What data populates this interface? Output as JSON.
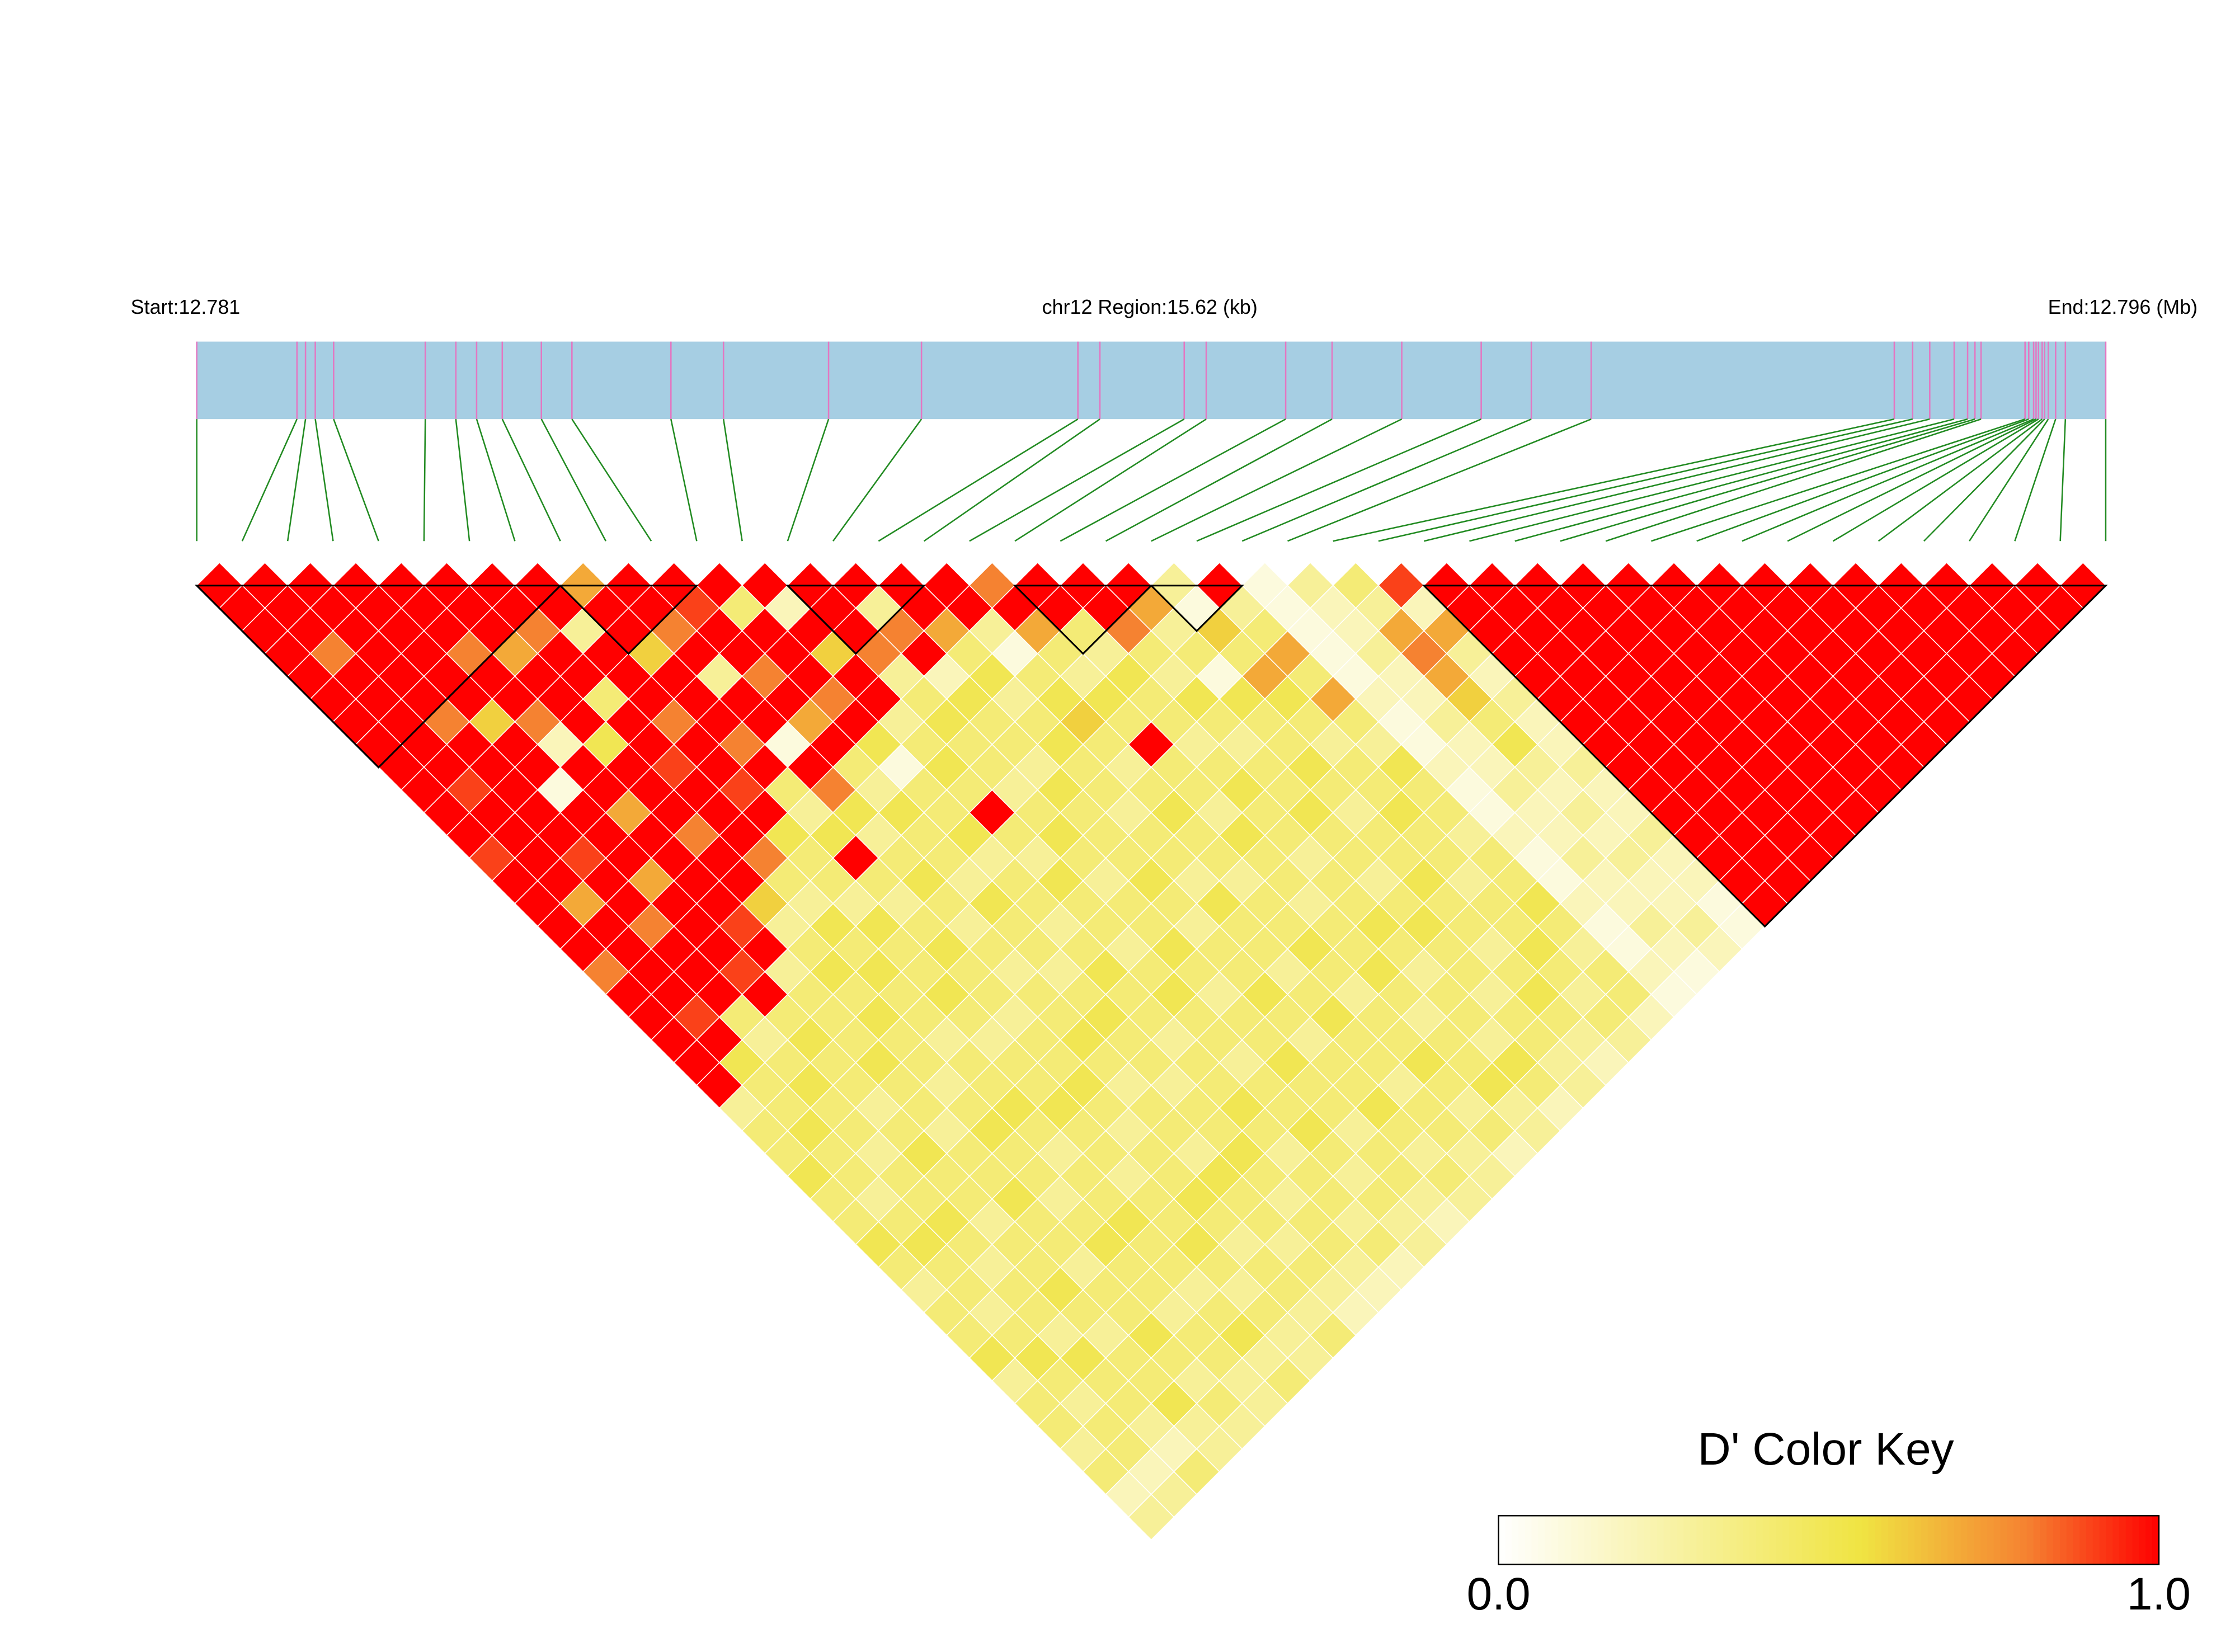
{
  "chart_data": {
    "type": "ld-heatmap",
    "start_label": "Start:12.781",
    "title": "chr12 Region:15.62 (kb)",
    "end_label": "End:12.796 (Mb)",
    "xlim": [
      0,
      15.62
    ],
    "positions": [
      0,
      0.82,
      0.89,
      0.97,
      1.12,
      1.87,
      2.12,
      2.29,
      2.5,
      2.82,
      3.07,
      3.88,
      4.31,
      5.17,
      5.93,
      7.21,
      7.39,
      8.08,
      8.26,
      8.91,
      9.29,
      9.86,
      10.51,
      10.92,
      11.41,
      13.89,
      14.04,
      14.18,
      14.38,
      14.49,
      14.55,
      14.6,
      14.96,
      14.99,
      15.03,
      15.05,
      15.07,
      15.1,
      15.12,
      15.15,
      15.21,
      15.29,
      15.62
    ],
    "matrix": [
      [
        1,
        1,
        1,
        1,
        1,
        1,
        1,
        1,
        1,
        1,
        1,
        1,
        0.9,
        1,
        1,
        1,
        1,
        0.8,
        1,
        1,
        1,
        1,
        1,
        0.3,
        0.4,
        0.4,
        0.5,
        0.4,
        0.4,
        0.5,
        0.4,
        0.3,
        0.4,
        0.4,
        0.5,
        0.3,
        0.4,
        0.4,
        0.3,
        0.4,
        0.2,
        0.3
      ],
      [
        1,
        1,
        1,
        0.8,
        1,
        1,
        1,
        1,
        1,
        0.9,
        1,
        1,
        1,
        1,
        0.7,
        1,
        1,
        1,
        1,
        0.9,
        1,
        0.5,
        0.4,
        0.4,
        0.5,
        0.4,
        0.4,
        0.3,
        0.4,
        0.5,
        0.4,
        0.4,
        0.3,
        0.4,
        0.5,
        0.4,
        0.3,
        0.4,
        0.4,
        0.2,
        0.3
      ],
      [
        1,
        1,
        1,
        1,
        1,
        1,
        0.8,
        1,
        1,
        1,
        1,
        1,
        0.9,
        1,
        1,
        0.8,
        1,
        1,
        1,
        0.4,
        0.3,
        0.4,
        0.5,
        0.4,
        0.4,
        0.3,
        0.4,
        0.4,
        0.5,
        0.4,
        0.3,
        0.4,
        0.4,
        0.3,
        0.5,
        0.4,
        0.4,
        0.3,
        0.2,
        0.4
      ],
      [
        1,
        1,
        1,
        1,
        1,
        1,
        0.6,
        1,
        1,
        0.1,
        1,
        1,
        1,
        0.7,
        1,
        1,
        1,
        0.9,
        1,
        0.4,
        0.5,
        0.4,
        0.4,
        0.3,
        0.4,
        0.5,
        0.4,
        0.4,
        0.3,
        0.4,
        0.4,
        0.5,
        0.4,
        0.3,
        0.4,
        0.4,
        0.5,
        0.3,
        0.3
      ],
      [
        1,
        1,
        1,
        0.8,
        1,
        1,
        0.8,
        0.2,
        1,
        1,
        0.7,
        1,
        1,
        1,
        1,
        0.9,
        1,
        0.3,
        0.4,
        0.4,
        0.4,
        0.5,
        0.4,
        0.4,
        0.3,
        0.4,
        0.4,
        0.5,
        0.4,
        0.4,
        0.3,
        0.4,
        0.4,
        0.5,
        0.4,
        0.3,
        0.4,
        0.3
      ],
      [
        1,
        1,
        1,
        0.7,
        1,
        1,
        1,
        0.5,
        1,
        1,
        1,
        0.8,
        1,
        1,
        0.6,
        0.3,
        0.4,
        0.5,
        0.4,
        0.5,
        0.4,
        0.4,
        0.3,
        0.4,
        0.5,
        0.4,
        0.4,
        0.3,
        0.4,
        0.5,
        0.4,
        0.4,
        0.3,
        0.4,
        0.4,
        0.3,
        0.3
      ],
      [
        1,
        1,
        0.8,
        1,
        1,
        0.4,
        1,
        1,
        0.9,
        1,
        1,
        1,
        0.8,
        0.4,
        0.3,
        0.5,
        0.4,
        0.5,
        0.4,
        0.4,
        0.3,
        0.4,
        0.4,
        0.5,
        0.4,
        0.3,
        0.4,
        0.4,
        0.5,
        0.4,
        0.4,
        0.3,
        0.4,
        0.5,
        0.3,
        0.4
      ],
      [
        1,
        1,
        0.3,
        1,
        1,
        1,
        0.8,
        1,
        1,
        0.9,
        1,
        0.5,
        0.4,
        0.4,
        0.3,
        0.5,
        0.4,
        0.4,
        0.5,
        0.4,
        0.3,
        0.4,
        0.4,
        0.5,
        0.4,
        0.4,
        0.3,
        0.4,
        0.4,
        0.5,
        0.4,
        0.3,
        0.4,
        0.3,
        0.3
      ],
      [
        0.7,
        1,
        1,
        0.6,
        1,
        1,
        1,
        0.8,
        1,
        0.4,
        0.3,
        0.5,
        1,
        0.4,
        0.3,
        0.4,
        0.5,
        0.4,
        0.4,
        0.3,
        0.4,
        0.4,
        0.5,
        0.4,
        0.3,
        0.4,
        0.4,
        0.5,
        0.4,
        0.3,
        0.4,
        0.4,
        0.3,
        0.4
      ],
      [
        1,
        1,
        0.8,
        1,
        0.3,
        1,
        1,
        0.1,
        1,
        0.8,
        0.5,
        0.3,
        0.4,
        0.5,
        0.4,
        0.3,
        0.4,
        0.3,
        0.4,
        0.4,
        0.5,
        0.4,
        0.3,
        0.4,
        0.4,
        0.3,
        0.5,
        0.4,
        0.4,
        0.3,
        0.4,
        0.3,
        0.2
      ],
      [
        1,
        0.9,
        1,
        1,
        0.8,
        1,
        0.7,
        1,
        0.4,
        0.3,
        0.5,
        0.4,
        0.4,
        0.3,
        0.5,
        0.4,
        0.4,
        0.3,
        0.4,
        0.5,
        0.4,
        0.4,
        0.3,
        0.4,
        0.4,
        0.5,
        0.4,
        0.3,
        0.4,
        0.4,
        0.3,
        0.2
      ],
      [
        1,
        0.4,
        1,
        1,
        1,
        0.8,
        1,
        0.5,
        0.1,
        0.4,
        0.4,
        0.5,
        0.3,
        0.4,
        0.4,
        0.3,
        0.4,
        0.5,
        0.4,
        0.4,
        0.3,
        0.4,
        0.4,
        0.5,
        0.4,
        0.3,
        0.4,
        0.4,
        0.3,
        0.4,
        0.2
      ],
      [
        1,
        0.2,
        1,
        0.6,
        1,
        1,
        0.3,
        0.4,
        0.5,
        0.4,
        1,
        0.4,
        0.3,
        0.5,
        0.4,
        0.4,
        0.3,
        0.4,
        0.5,
        0.4,
        0.4,
        0.3,
        0.4,
        0.4,
        0.5,
        0.4,
        0.3,
        0.4,
        0.3,
        0.3
      ],
      [
        1,
        1,
        1,
        0.8,
        0.3,
        0.4,
        0.5,
        0.4,
        0.4,
        0.3,
        0.4,
        0.5,
        0.4,
        0.3,
        0.4,
        0.4,
        0.5,
        0.4,
        0.3,
        0.4,
        0.4,
        0.5,
        0.4,
        0.4,
        0.3,
        0.4,
        0.4,
        0.3,
        0.2
      ],
      [
        1,
        0.3,
        0.8,
        1,
        0.2,
        0.5,
        0.4,
        0.4,
        0.3,
        0.5,
        0.4,
        0.4,
        0.4,
        0.5,
        0.4,
        0.3,
        0.4,
        0.4,
        0.5,
        0.4,
        0.3,
        0.4,
        0.4,
        0.5,
        0.4,
        0.3,
        0.4,
        0.3
      ],
      [
        1,
        1,
        0.7,
        0.4,
        0.5,
        0.3,
        0.4,
        0.5,
        0.4,
        0.4,
        0.3,
        0.4,
        0.4,
        0.3,
        0.5,
        0.4,
        0.4,
        0.3,
        0.4,
        0.5,
        0.4,
        0.4,
        0.3,
        0.4,
        0.4,
        0.3,
        0.3
      ],
      [
        1,
        1,
        0.3,
        0.1,
        0.4,
        0.5,
        0.6,
        0.4,
        0.3,
        0.4,
        0.5,
        0.4,
        0.4,
        0.3,
        0.4,
        0.4,
        0.5,
        0.4,
        0.3,
        0.4,
        0.4,
        0.5,
        0.4,
        0.3,
        0.4,
        0.2
      ],
      [
        0.8,
        1,
        0.7,
        0.4,
        0.3,
        0.5,
        0.4,
        1,
        0.4,
        0.4,
        0.3,
        0.5,
        0.4,
        0.4,
        0.3,
        0.4,
        0.4,
        0.5,
        0.4,
        0.3,
        0.4,
        0.4,
        0.5,
        0.3,
        0.3
      ],
      [
        1,
        1,
        0.4,
        0.3,
        0.5,
        0.4,
        0.4,
        0.3,
        0.4,
        0.5,
        0.4,
        0.4,
        0.3,
        0.4,
        0.4,
        0.5,
        0.4,
        0.3,
        0.4,
        0.4,
        0.3,
        0.5,
        0.4,
        0.2
      ],
      [
        1,
        1,
        0.8,
        0.4,
        0.3,
        0.5,
        0.4,
        0.3,
        0.4,
        0.4,
        0.5,
        0.4,
        0.4,
        0.3,
        0.4,
        0.5,
        0.4,
        0.4,
        0.3,
        0.4,
        0.4,
        0.3,
        0.3
      ],
      [
        1,
        0.7,
        0.3,
        0.4,
        0.1,
        0.5,
        0.4,
        0.4,
        0.5,
        0.4,
        0.3,
        0.4,
        0.4,
        0.5,
        0.4,
        0.4,
        0.3,
        0.4,
        0.5,
        0.4,
        0.3,
        0.2
      ],
      [
        0.3,
        0.1,
        0.6,
        0.4,
        0.7,
        0.5,
        0.4,
        0.3,
        0.4,
        0.4,
        0.5,
        0.4,
        0.4,
        0.3,
        0.4,
        0.4,
        0.5,
        0.4,
        0.3,
        0.4,
        0.3
      ],
      [
        1,
        0.3,
        0.4,
        0.7,
        0.4,
        0.7,
        0.4,
        0.3,
        0.5,
        0.4,
        0.4,
        0.3,
        0.4,
        0.4,
        0.5,
        0.4,
        0.3,
        0.4,
        0.4,
        0.2
      ],
      [
        0.1,
        0.1,
        0.1,
        0.1,
        0.1,
        0.2,
        0.1,
        0.1,
        0.2,
        0.1,
        0.1,
        0.2,
        0.1,
        0.1,
        0.2,
        0.1,
        0.1,
        0.2,
        0.1
      ],
      [
        0.3,
        0.2,
        0.2,
        0.3,
        0.2,
        0.2,
        0.3,
        0.2,
        0.2,
        0.3,
        0.2,
        0.2,
        0.3,
        0.2,
        0.2,
        0.3,
        0.2,
        0.1
      ],
      [
        0.4,
        0.3,
        0.7,
        0.8,
        0.7,
        0.6,
        0.4,
        0.5,
        0.3,
        0.2,
        0.3,
        0.2,
        0.3,
        0.2,
        0.2,
        0.3,
        0.2
      ],
      [
        0.9,
        0.2,
        0.7,
        0.3,
        0.2,
        0.3,
        0.2,
        0.2,
        0.3,
        0.2,
        0.2,
        0.3,
        0.2,
        0.2,
        0.1,
        0.1
      ],
      [
        1,
        1,
        1,
        1,
        1,
        1,
        1,
        1,
        1,
        1,
        1,
        1,
        1,
        1,
        1
      ],
      [
        1,
        1,
        1,
        1,
        1,
        1,
        1,
        1,
        1,
        1,
        1,
        1,
        1,
        1
      ],
      [
        1,
        1,
        1,
        1,
        1,
        1,
        1,
        1,
        1,
        1,
        1,
        1,
        1
      ],
      [
        1,
        1,
        1,
        1,
        1,
        1,
        1,
        1,
        1,
        1,
        1,
        1
      ],
      [
        1,
        1,
        1,
        1,
        1,
        1,
        1,
        1,
        1,
        1,
        1
      ],
      [
        1,
        1,
        1,
        1,
        1,
        1,
        1,
        1,
        1,
        1
      ],
      [
        1,
        1,
        1,
        1,
        1,
        1,
        1,
        1,
        1
      ],
      [
        1,
        1,
        1,
        1,
        1,
        1,
        1,
        1
      ],
      [
        1,
        1,
        1,
        1,
        1,
        1,
        1
      ],
      [
        1,
        1,
        1,
        1,
        1,
        1
      ],
      [
        1,
        1,
        1,
        1,
        1
      ],
      [
        1,
        1,
        1,
        1
      ],
      [
        1,
        1,
        1
      ],
      [
        1,
        1
      ],
      [
        1
      ]
    ],
    "blocks": [
      [
        0,
        8
      ],
      [
        8,
        11
      ],
      [
        13,
        16
      ],
      [
        18,
        21
      ],
      [
        21,
        23
      ],
      [
        27,
        42
      ]
    ],
    "colorscale": [
      [
        0,
        "#ffffff"
      ],
      [
        0.55,
        "#f0e442"
      ],
      [
        0.8,
        "#f58231"
      ],
      [
        1,
        "#ff0000"
      ]
    ],
    "bar_color": "#a6cee3",
    "snp_line_color": "#e377c2",
    "connector_color": "#228b22",
    "key_title": "D' Color Key",
    "key_ticks": [
      {
        "value": 0,
        "label": "0.0"
      },
      {
        "value": 1,
        "label": "1.0"
      }
    ]
  }
}
